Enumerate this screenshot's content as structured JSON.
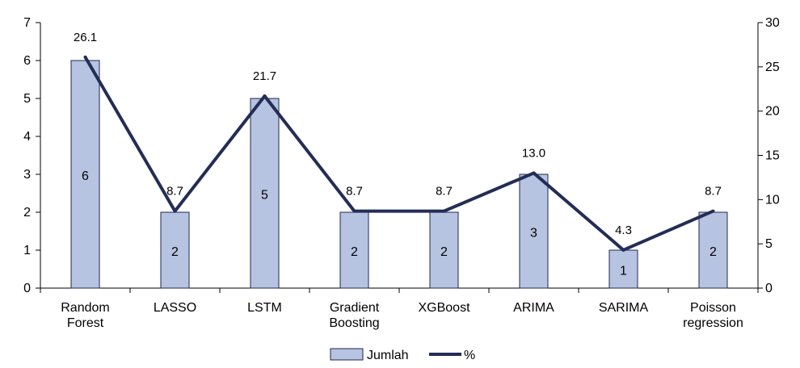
{
  "chart_data": {
    "type": "bar",
    "categories": [
      [
        "Random",
        "Forest"
      ],
      [
        "LASSO"
      ],
      [
        "LSTM"
      ],
      [
        "Gradient",
        "Boosting"
      ],
      [
        "XGBoost"
      ],
      [
        "ARIMA"
      ],
      [
        "SARIMA"
      ],
      [
        "Poisson",
        "regression"
      ]
    ],
    "series": [
      {
        "name": "Jumlah",
        "type": "bar",
        "axis": "left",
        "values": [
          6,
          2,
          5,
          2,
          2,
          3,
          1,
          2
        ],
        "labels": [
          "6",
          "2",
          "5",
          "2",
          "2",
          "3",
          "1",
          "2"
        ]
      },
      {
        "name": "%",
        "type": "line",
        "axis": "right",
        "values": [
          26.1,
          8.7,
          21.7,
          8.7,
          8.7,
          13.0,
          4.3,
          8.7
        ],
        "labels": [
          "26.1",
          "8.7",
          "21.7",
          "8.7",
          "8.7",
          "13.0",
          "4.3",
          "8.7"
        ]
      }
    ],
    "y_left": {
      "min": 0,
      "max": 7,
      "ticks": [
        "0",
        "1",
        "2",
        "3",
        "4",
        "5",
        "6",
        "7"
      ]
    },
    "y_right": {
      "min": 0,
      "max": 30,
      "ticks": [
        "0",
        "5",
        "10",
        "15",
        "20",
        "25",
        "30"
      ]
    },
    "colors": {
      "bar_fill": "#b6c3e1",
      "bar_stroke": "#1f2a4d",
      "line": "#232d55",
      "axis": "#000000"
    },
    "legend": {
      "position": "bottom",
      "items": [
        "Jumlah",
        "%"
      ]
    },
    "grid": false
  }
}
